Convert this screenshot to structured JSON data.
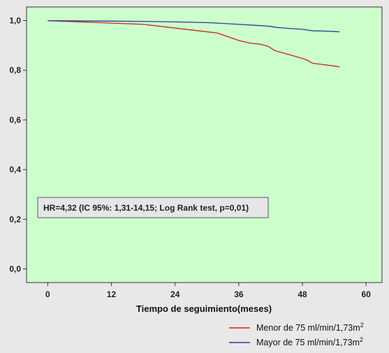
{
  "chart_data": {
    "type": "line",
    "xlabel": "Tiempo de seguimiento(meses)",
    "ylabel": "",
    "xlim": [
      -4,
      63
    ],
    "ylim": [
      -0.055,
      1.055
    ],
    "x_ticks": [
      0,
      12,
      24,
      36,
      48,
      60
    ],
    "y_ticks": [
      0.0,
      0.2,
      0.4,
      0.6,
      0.8,
      1.0
    ],
    "x_tick_labels": [
      "0",
      "12",
      "24",
      "36",
      "48",
      "60"
    ],
    "y_tick_labels": [
      "0,0",
      "0,2",
      "0,4",
      "0,6",
      "0,8",
      "1,0"
    ],
    "grid": false,
    "plot_background": "#ccffcc",
    "legend_position": "bottom-right",
    "annotation": "HR=4,32 (IC 95%: 1,31-14,15; Log Rank test, p=0,01)",
    "series": [
      {
        "legend_label": "Menor de 75 ml/min/1,73m",
        "legend_superscript": "2",
        "color": "#cc2222",
        "x": [
          0,
          6,
          12,
          18,
          24,
          28,
          32,
          34,
          36,
          38,
          40,
          41.5,
          42,
          42.5,
          43,
          44,
          46,
          48,
          49,
          49.5,
          50,
          52,
          54,
          55
        ],
        "y": [
          1.0,
          0.995,
          0.99,
          0.985,
          0.97,
          0.96,
          0.95,
          0.935,
          0.92,
          0.91,
          0.905,
          0.897,
          0.89,
          0.883,
          0.878,
          0.872,
          0.86,
          0.848,
          0.84,
          0.833,
          0.828,
          0.823,
          0.817,
          0.814
        ]
      },
      {
        "legend_label": "Mayor de 75 ml/min/1,73m",
        "legend_superscript": "2",
        "color": "#2a3d8f",
        "x": [
          0,
          12,
          18,
          24,
          30,
          32,
          36,
          40,
          42,
          43,
          44,
          46,
          48,
          49,
          50,
          52,
          54,
          55
        ],
        "y": [
          1.0,
          0.998,
          0.997,
          0.995,
          0.992,
          0.99,
          0.985,
          0.98,
          0.977,
          0.973,
          0.971,
          0.968,
          0.965,
          0.962,
          0.959,
          0.958,
          0.956,
          0.955
        ]
      }
    ]
  }
}
